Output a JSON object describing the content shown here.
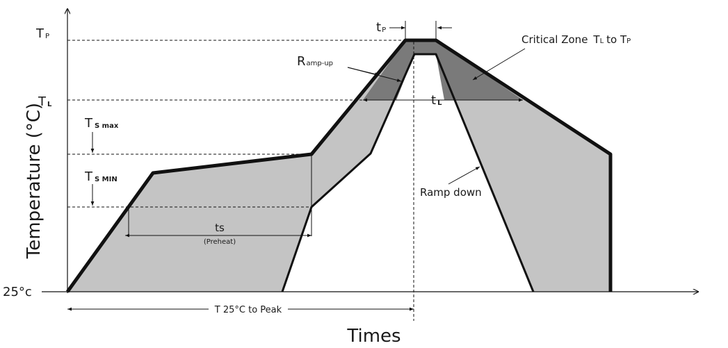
{
  "axes": {
    "y_label": "Temperature (°C)",
    "x_label": "Times",
    "y_origin_label": "25°c"
  },
  "levels": {
    "tp": {
      "main": "T",
      "sub": "P"
    },
    "tl": {
      "main": "T",
      "sub": "L"
    },
    "ts_max": {
      "main": "T",
      "sub": "S max"
    },
    "ts_min": {
      "main": "T",
      "sub": "S MIN"
    }
  },
  "annotations": {
    "tp_dur": {
      "main": "t",
      "sub": "P"
    },
    "tl_dur": {
      "main": "t",
      "sub": "L"
    },
    "ts": {
      "main": "ts",
      "sub": "(Preheat)"
    },
    "ramp_up": {
      "main": "R",
      "sub": "amp-up"
    },
    "ramp_down": "Ramp down",
    "critical_zone": {
      "part1": "Critical Zone",
      "part2": "T",
      "part2_sub": "L",
      "part3": "to T",
      "part3_sub": "P"
    },
    "t25_to_peak": "T 25°C to Peak"
  },
  "colors": {
    "light_zone": "#c4c4c4",
    "critical_zone": "#7a7a7a",
    "line": "#111111"
  }
}
